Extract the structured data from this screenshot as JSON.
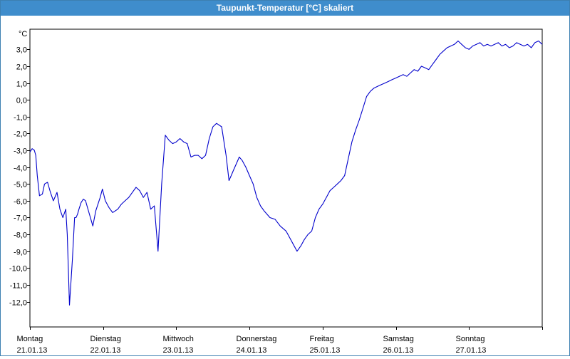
{
  "window": {
    "title": "Taupunkt-Temperatur [°C] skaliert"
  },
  "chart_data": {
    "type": "line",
    "title": "Taupunkt-Temperatur [°C] skaliert",
    "ylabel": "°C",
    "xlabel": "",
    "ylim": [
      -13.5,
      4.2
    ],
    "xlim": [
      0,
      7
    ],
    "grid": true,
    "y_ticks": [
      3.0,
      2.0,
      1.0,
      0.0,
      -1.0,
      -2.0,
      -3.0,
      -4.0,
      -5.0,
      -6.0,
      -7.0,
      -8.0,
      -9.0,
      -10.0,
      -11.0,
      -12.0
    ],
    "y_tick_labels": [
      "3,0",
      "2,0",
      "1,0",
      "0,0",
      "-1,0",
      "-2,0",
      "-3,0",
      "-4,0",
      "-5,0",
      "-6,0",
      "-7,0",
      "-8,0",
      "-9,0",
      "-10,0",
      "-11,0",
      "-12,0"
    ],
    "x_ticks": [
      {
        "day": "Montag",
        "date": "21.01.13"
      },
      {
        "day": "Dienstag",
        "date": "22.01.13"
      },
      {
        "day": "Mittwoch",
        "date": "23.01.13"
      },
      {
        "day": "Donnerstag",
        "date": "24.01.13"
      },
      {
        "day": "Freitag",
        "date": "25.01.13"
      },
      {
        "day": "Samstag",
        "date": "26.01.13"
      },
      {
        "day": "Sonntag",
        "date": "27.01.13"
      }
    ],
    "line_color": "#0000cc",
    "series": [
      {
        "x": [
          0.0,
          0.03,
          0.06,
          0.08,
          0.1,
          0.13,
          0.17,
          0.2,
          0.24,
          0.28,
          0.32,
          0.37,
          0.41,
          0.45,
          0.49,
          0.51,
          0.54,
          0.58,
          0.61,
          0.62,
          0.63,
          0.65,
          0.67,
          0.7,
          0.73,
          0.76,
          0.78,
          0.82,
          0.86,
          0.9,
          0.93,
          0.96,
          0.99,
          1.03,
          1.08,
          1.13,
          1.2,
          1.25,
          1.3,
          1.35,
          1.4,
          1.45,
          1.5,
          1.55,
          1.6,
          1.65,
          1.7,
          1.75,
          1.8,
          1.85,
          1.9,
          1.95,
          2.0,
          2.05,
          2.1,
          2.15,
          2.2,
          2.25,
          2.3,
          2.35,
          2.4,
          2.45,
          2.5,
          2.55,
          2.62,
          2.68,
          2.72,
          2.75,
          2.78,
          2.82,
          2.86,
          2.9,
          2.95,
          3.0,
          3.05,
          3.1,
          3.15,
          3.2,
          3.28,
          3.35,
          3.42,
          3.5,
          3.55,
          3.6,
          3.65,
          3.7,
          3.75,
          3.8,
          3.85,
          3.9,
          3.95,
          4.0,
          4.05,
          4.1,
          4.15,
          4.2,
          4.25,
          4.3,
          4.35,
          4.4,
          4.45,
          4.5,
          4.55,
          4.6,
          4.65,
          4.7,
          4.75,
          4.8,
          4.85,
          4.9,
          4.95,
          5.0,
          5.05,
          5.1,
          5.15,
          5.2,
          5.25,
          5.3,
          5.35,
          5.4,
          5.45,
          5.5,
          5.55,
          5.6,
          5.65,
          5.7,
          5.75,
          5.8,
          5.85,
          5.9,
          5.95,
          6.0,
          6.05,
          6.1,
          6.15,
          6.2,
          6.25,
          6.3,
          6.35,
          6.4,
          6.45,
          6.5,
          6.55,
          6.6,
          6.65,
          6.7,
          6.75,
          6.8,
          6.85,
          6.9,
          6.95,
          7.0
        ],
        "values": [
          -3.1,
          -2.9,
          -3.0,
          -3.3,
          -4.5,
          -5.7,
          -5.6,
          -5.0,
          -4.9,
          -5.5,
          -6.0,
          -5.5,
          -6.5,
          -7.0,
          -6.5,
          -8.0,
          -12.2,
          -9.5,
          -7.0,
          -7.0,
          -7.0,
          -6.8,
          -6.5,
          -6.1,
          -5.9,
          -6.0,
          -6.3,
          -6.9,
          -7.5,
          -6.6,
          -6.2,
          -5.8,
          -5.3,
          -6.0,
          -6.4,
          -6.7,
          -6.5,
          -6.2,
          -6.0,
          -5.8,
          -5.5,
          -5.2,
          -5.4,
          -5.8,
          -5.5,
          -6.5,
          -6.3,
          -9.0,
          -5.0,
          -2.1,
          -2.4,
          -2.6,
          -2.5,
          -2.3,
          -2.5,
          -2.6,
          -3.4,
          -3.3,
          -3.3,
          -3.5,
          -3.3,
          -2.3,
          -1.6,
          -1.4,
          -1.6,
          -3.3,
          -4.8,
          -4.5,
          -4.2,
          -3.8,
          -3.4,
          -3.6,
          -4.0,
          -4.5,
          -5.0,
          -5.8,
          -6.3,
          -6.6,
          -7.0,
          -7.1,
          -7.5,
          -7.8,
          -8.2,
          -8.6,
          -9.0,
          -8.7,
          -8.3,
          -8.0,
          -7.8,
          -7.0,
          -6.5,
          -6.2,
          -5.8,
          -5.4,
          -5.2,
          -5.0,
          -4.8,
          -4.5,
          -3.5,
          -2.5,
          -1.8,
          -1.2,
          -0.5,
          0.2,
          0.5,
          0.7,
          0.8,
          0.9,
          1.0,
          1.1,
          1.2,
          1.3,
          1.4,
          1.5,
          1.4,
          1.6,
          1.8,
          1.7,
          2.0,
          1.9,
          1.8,
          2.1,
          2.4,
          2.7,
          2.9,
          3.1,
          3.2,
          3.3,
          3.5,
          3.3,
          3.1,
          3.0,
          3.2,
          3.3,
          3.4,
          3.2,
          3.3,
          3.2,
          3.3,
          3.4,
          3.2,
          3.3,
          3.1,
          3.2,
          3.4,
          3.3,
          3.2,
          3.3,
          3.1,
          3.4,
          3.5,
          3.3
        ]
      }
    ]
  }
}
